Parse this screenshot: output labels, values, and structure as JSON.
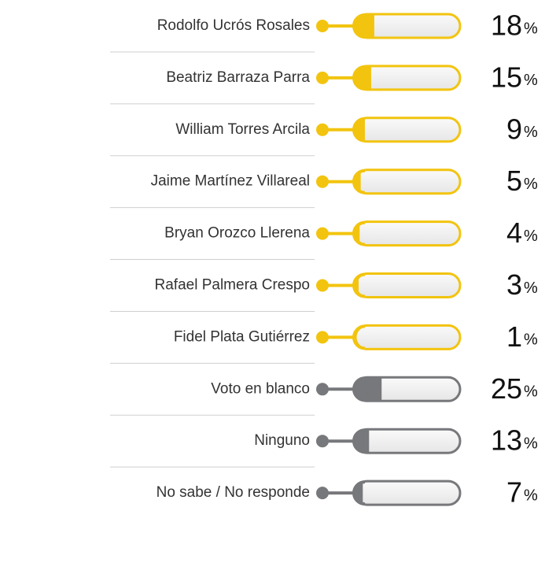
{
  "chart_data": {
    "type": "bar",
    "orientation": "horizontal",
    "categories": [
      "Rodolfo Ucrós Rosales",
      "Beatriz Barraza Parra",
      "William Torres Arcila",
      "Jaime Martínez Villareal",
      "Bryan Orozco Llerena",
      "Rafael Palmera Crespo",
      "Fidel Plata Gutiérrez",
      "Voto en blanco",
      "Ninguno",
      "No sabe / No responde"
    ],
    "values": [
      18,
      15,
      9,
      5,
      4,
      3,
      1,
      25,
      13,
      7
    ],
    "unit": "%",
    "colors": [
      "#f2c40f",
      "#f2c40f",
      "#f2c40f",
      "#f2c40f",
      "#f2c40f",
      "#f2c40f",
      "#f2c40f",
      "#77787b",
      "#77787b",
      "#77787b"
    ],
    "xlim": [
      0,
      100
    ]
  }
}
